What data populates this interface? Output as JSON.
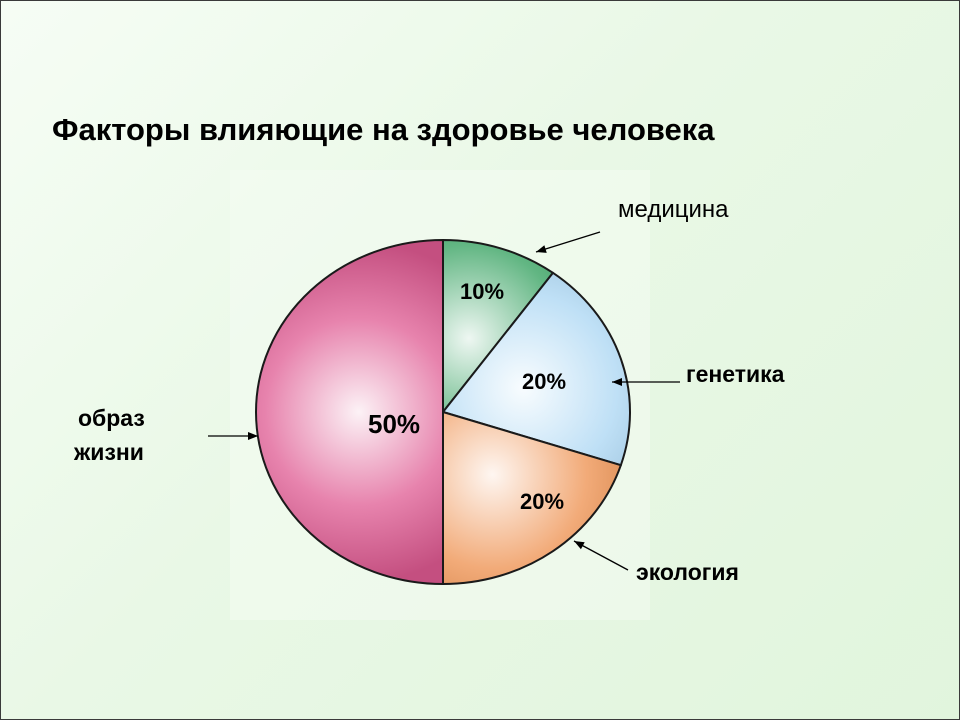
{
  "title": "Факторы влияющие на здоровье человека",
  "chart_data": {
    "type": "pie",
    "title": "Факторы влияющие на здоровье человека",
    "slices": [
      {
        "label": "медицина",
        "value": 10,
        "value_label": "10%",
        "color": "#2e9d5a"
      },
      {
        "label": "генетика",
        "value": 20,
        "value_label": "20%",
        "color": "#a9d6f3"
      },
      {
        "label": "экология",
        "value": 20,
        "value_label": "20%",
        "color": "#ee8f4c"
      },
      {
        "label": "образ жизни",
        "value": 50,
        "value_label": "50%",
        "color": "#df5a92"
      }
    ],
    "category_labels": {
      "medicine": "медицина",
      "genetics": "генетика",
      "ecology": "экология",
      "lifestyle_line1": "образ",
      "lifestyle_line2": "жизни"
    },
    "legend": "none"
  }
}
